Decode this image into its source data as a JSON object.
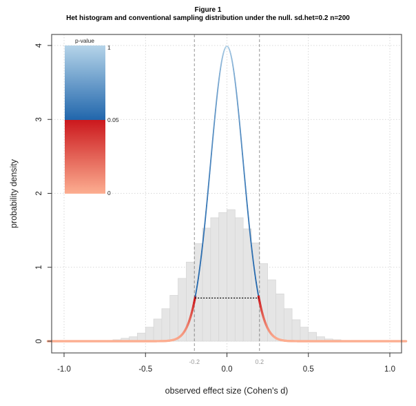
{
  "chart_data": {
    "type": "bar",
    "title": "Figure 1",
    "subtitle": "Het histogram and conventional sampling distribution under the null. sd.het=0.2 n=200",
    "xlabel": "observed effect size (Cohen's d)",
    "ylabel": "probability density",
    "xlim": [
      -1.1,
      1.1
    ],
    "ylim": [
      -0.15,
      4.1
    ],
    "x_ticks": [
      -1.0,
      -0.5,
      0.0,
      0.5,
      1.0
    ],
    "x_tick_labels": [
      "-1.0",
      "-0.5",
      "0.0",
      "0.5",
      "1.0"
    ],
    "y_ticks": [
      0,
      1,
      2,
      3,
      4
    ],
    "y_tick_labels": [
      "0",
      "1",
      "2",
      "3",
      "4"
    ],
    "grid": true,
    "critical_values": [
      -0.2,
      0.2
    ],
    "critical_labels": [
      "-0.2",
      "0.2"
    ],
    "histogram": {
      "bin_width": 0.05,
      "bin_start": -0.75,
      "values": [
        0.01,
        0.02,
        0.04,
        0.06,
        0.11,
        0.19,
        0.3,
        0.44,
        0.62,
        0.85,
        1.07,
        1.32,
        1.53,
        1.67,
        1.74,
        1.78,
        1.67,
        1.52,
        1.33,
        1.05,
        0.83,
        0.64,
        0.44,
        0.29,
        0.19,
        0.12,
        0.06,
        0.03,
        0.02,
        0.01
      ],
      "color": "#e5e5e5",
      "border": "#d4d4d4"
    },
    "null_curve": {
      "mean": 0,
      "sd": 0.1,
      "critical_density": 0.584
    },
    "legend": {
      "title": "p-value",
      "placement": "top-left",
      "labels": [
        "1",
        "0.05",
        "0"
      ],
      "colors": {
        "p1": "#b5d4e9",
        "p05_blue": "#2166ac",
        "p05_red": "#cb181d",
        "p0": "#fcae91"
      }
    }
  }
}
